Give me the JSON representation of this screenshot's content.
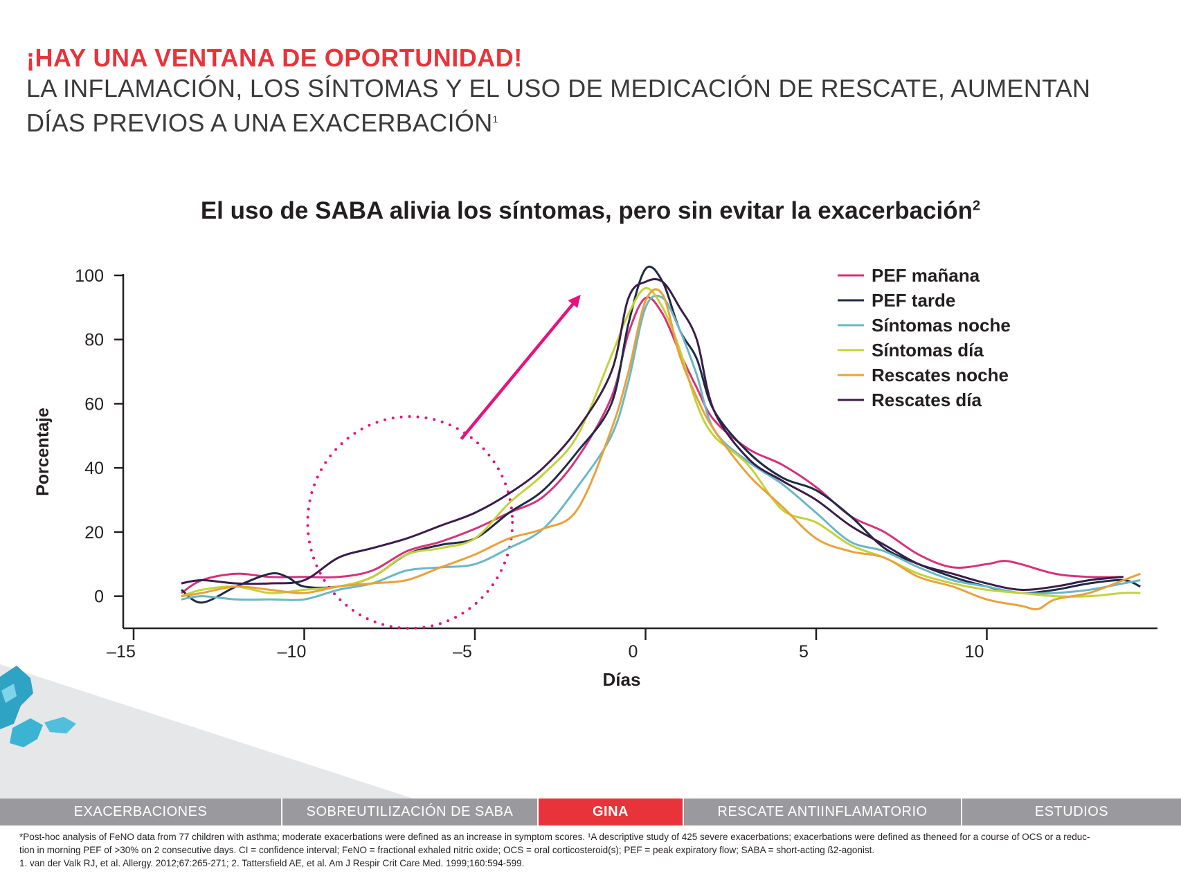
{
  "header": {
    "headline": "¡HAY UNA VENTANA DE OPORTUNIDAD!",
    "subline1": "LA INFLAMACIÓN, LOS SÍNTOMAS Y EL USO DE MEDICACIÓN DE RESCATE, AUMENTAN",
    "subline2": "DÍAS PREVIOS A UNA EXACERBACIÓN",
    "subline2_ref": "1"
  },
  "chart_title": "El uso de SABA alivia los síntomas, pero sin evitar la exacerbación",
  "chart_title_ref": "2",
  "chart_data": {
    "type": "line",
    "title": "El uso de SABA alivia los síntomas, pero sin evitar la exacerbación",
    "xlabel": "Días",
    "ylabel": "Porcentaje",
    "xlim": [
      -15,
      15
    ],
    "ylim": [
      -10,
      100
    ],
    "xticks": [
      -15,
      -10,
      -5,
      0,
      5,
      10
    ],
    "yticks": [
      0,
      20,
      40,
      60,
      80,
      100
    ],
    "grid": false,
    "legend_position": "top-right",
    "annotations": [
      {
        "type": "dotted-circle",
        "center": [
          -6.9,
          23
        ],
        "radius_x": 3,
        "radius_y": 33,
        "color": "#e6127e"
      },
      {
        "type": "arrow",
        "from": [
          -5.4,
          49
        ],
        "to": [
          -1.9,
          94
        ],
        "color": "#e6127e"
      }
    ],
    "series": [
      {
        "name": "PEF mañana",
        "color": "#d6317a",
        "points": [
          [
            -13.6,
            1
          ],
          [
            -13,
            5
          ],
          [
            -12,
            7
          ],
          [
            -11,
            6
          ],
          [
            -10,
            6
          ],
          [
            -9,
            6
          ],
          [
            -8,
            8
          ],
          [
            -7,
            14
          ],
          [
            -6,
            17
          ],
          [
            -5,
            21
          ],
          [
            -4,
            26
          ],
          [
            -3,
            31
          ],
          [
            -2,
            43
          ],
          [
            -1,
            62
          ],
          [
            -0.5,
            82
          ],
          [
            0,
            93
          ],
          [
            0.5,
            88
          ],
          [
            1,
            76
          ],
          [
            1.5,
            65
          ],
          [
            2,
            55
          ],
          [
            3,
            46
          ],
          [
            4,
            41
          ],
          [
            5,
            34
          ],
          [
            6,
            25
          ],
          [
            7,
            20
          ],
          [
            8,
            13
          ],
          [
            9,
            9
          ],
          [
            10,
            10
          ],
          [
            10.5,
            11
          ],
          [
            11,
            10
          ],
          [
            12,
            7
          ],
          [
            13,
            6
          ],
          [
            14,
            6
          ]
        ]
      },
      {
        "name": "PEF tarde",
        "color": "#1e2b45",
        "points": [
          [
            -13.6,
            2
          ],
          [
            -13,
            -2
          ],
          [
            -12,
            3
          ],
          [
            -11,
            7
          ],
          [
            -10.5,
            6
          ],
          [
            -10,
            3
          ],
          [
            -9,
            3
          ],
          [
            -8,
            6
          ],
          [
            -7,
            13
          ],
          [
            -6,
            16
          ],
          [
            -5,
            18
          ],
          [
            -4,
            26
          ],
          [
            -3,
            33
          ],
          [
            -2,
            45
          ],
          [
            -1,
            60
          ],
          [
            -0.5,
            85
          ],
          [
            0,
            102
          ],
          [
            0.5,
            98
          ],
          [
            1,
            83
          ],
          [
            1.5,
            74
          ],
          [
            2,
            58
          ],
          [
            3,
            45
          ],
          [
            4,
            37
          ],
          [
            5,
            33
          ],
          [
            6,
            25
          ],
          [
            7,
            15
          ],
          [
            8,
            10
          ],
          [
            9,
            6
          ],
          [
            10,
            3
          ],
          [
            11,
            1
          ],
          [
            12,
            2
          ],
          [
            13,
            4
          ],
          [
            14,
            5
          ],
          [
            14.5,
            3
          ]
        ]
      },
      {
        "name": "Síntomas noche",
        "color": "#6ab7c7",
        "points": [
          [
            -13.6,
            -1
          ],
          [
            -13,
            0
          ],
          [
            -12,
            -1
          ],
          [
            -11,
            -1
          ],
          [
            -10,
            -1
          ],
          [
            -9,
            2
          ],
          [
            -8,
            4
          ],
          [
            -7,
            8
          ],
          [
            -6,
            9
          ],
          [
            -5,
            10
          ],
          [
            -4,
            15
          ],
          [
            -3,
            21
          ],
          [
            -2,
            34
          ],
          [
            -1,
            50
          ],
          [
            -0.5,
            67
          ],
          [
            0,
            90
          ],
          [
            0.5,
            93
          ],
          [
            1,
            83
          ],
          [
            1.5,
            69
          ],
          [
            2,
            52
          ],
          [
            3,
            42
          ],
          [
            4,
            35
          ],
          [
            5,
            26
          ],
          [
            6,
            17
          ],
          [
            7,
            14
          ],
          [
            8,
            9
          ],
          [
            9,
            5
          ],
          [
            10,
            3
          ],
          [
            11,
            1
          ],
          [
            12,
            1
          ],
          [
            13,
            2
          ],
          [
            14,
            4
          ],
          [
            14.5,
            5
          ]
        ]
      },
      {
        "name": "Síntomas día",
        "color": "#c3d23a",
        "points": [
          [
            -13.6,
            0
          ],
          [
            -13,
            2
          ],
          [
            -12,
            3
          ],
          [
            -11,
            1
          ],
          [
            -10,
            2
          ],
          [
            -9,
            3
          ],
          [
            -8,
            6
          ],
          [
            -7,
            13
          ],
          [
            -6,
            15
          ],
          [
            -5,
            18
          ],
          [
            -4,
            29
          ],
          [
            -3,
            38
          ],
          [
            -2,
            50
          ],
          [
            -1,
            75
          ],
          [
            -0.5,
            88
          ],
          [
            0,
            96
          ],
          [
            0.5,
            90
          ],
          [
            1,
            77
          ],
          [
            1.5,
            60
          ],
          [
            2,
            50
          ],
          [
            3,
            41
          ],
          [
            4,
            27
          ],
          [
            5,
            23
          ],
          [
            6,
            16
          ],
          [
            7,
            12
          ],
          [
            8,
            7
          ],
          [
            9,
            4
          ],
          [
            10,
            2
          ],
          [
            11,
            1
          ],
          [
            12,
            0
          ],
          [
            13,
            0
          ],
          [
            14,
            1
          ],
          [
            14.5,
            1
          ]
        ]
      },
      {
        "name": "Rescates noche",
        "color": "#e8a23b",
        "points": [
          [
            -13.6,
            0
          ],
          [
            -13,
            1
          ],
          [
            -12,
            3
          ],
          [
            -11,
            2
          ],
          [
            -10,
            1
          ],
          [
            -9,
            3
          ],
          [
            -8,
            4
          ],
          [
            -7,
            5
          ],
          [
            -6,
            9
          ],
          [
            -5,
            13
          ],
          [
            -4,
            18
          ],
          [
            -3,
            21
          ],
          [
            -2,
            27
          ],
          [
            -1,
            52
          ],
          [
            -0.5,
            70
          ],
          [
            0,
            92
          ],
          [
            0.5,
            94
          ],
          [
            1,
            75
          ],
          [
            1.5,
            62
          ],
          [
            2,
            52
          ],
          [
            3,
            38
          ],
          [
            4,
            28
          ],
          [
            5,
            18
          ],
          [
            6,
            14
          ],
          [
            7,
            12
          ],
          [
            8,
            6
          ],
          [
            9,
            3
          ],
          [
            10,
            -1
          ],
          [
            11,
            -3
          ],
          [
            11.5,
            -4
          ],
          [
            12,
            -1
          ],
          [
            13,
            1
          ],
          [
            14,
            5
          ],
          [
            14.5,
            7
          ]
        ]
      },
      {
        "name": "Rescates día",
        "color": "#3a1c4b",
        "points": [
          [
            -13.6,
            4
          ],
          [
            -13,
            5
          ],
          [
            -12,
            4
          ],
          [
            -11,
            4
          ],
          [
            -10,
            5
          ],
          [
            -9,
            12
          ],
          [
            -8,
            15
          ],
          [
            -7,
            18
          ],
          [
            -6,
            22
          ],
          [
            -5,
            26
          ],
          [
            -4,
            32
          ],
          [
            -3,
            40
          ],
          [
            -2,
            52
          ],
          [
            -1,
            70
          ],
          [
            -0.5,
            93
          ],
          [
            0,
            98
          ],
          [
            0.5,
            98
          ],
          [
            1,
            90
          ],
          [
            1.5,
            80
          ],
          [
            2,
            58
          ],
          [
            3,
            43
          ],
          [
            4,
            36
          ],
          [
            5,
            30
          ],
          [
            6,
            22
          ],
          [
            7,
            16
          ],
          [
            8,
            10
          ],
          [
            9,
            7
          ],
          [
            10,
            4
          ],
          [
            11,
            2
          ],
          [
            12,
            3
          ],
          [
            13,
            5
          ],
          [
            14,
            6
          ]
        ]
      }
    ]
  },
  "nav": {
    "tabs": [
      {
        "label": "EXACERBACIONES",
        "active": false
      },
      {
        "label": "SOBREUTILIZACIÓN DE SABA",
        "active": false
      },
      {
        "label": "GINA",
        "active": true
      },
      {
        "label": "RESCATE ANTIINFLAMATORIO",
        "active": false
      },
      {
        "label": "ESTUDIOS",
        "active": false
      }
    ]
  },
  "footnotes": {
    "line1": "*Post-hoc analysis of FeNO data from 77 children with asthma; moderate exacerbations were defined as an increase in symptom scores. ¹A descriptive study of 425 severe exacerbations; exacerbations were defined as theneed for a course of OCS or a reduc-",
    "line2": "tion in morning PEF of >30% on 2 consecutive days. CI = confidence interval; FeNO = fractional exhaled nitric oxide; OCS = oral corticosteroid(s); PEF = peak expiratory flow; SABA = short-acting ß2-agonist.",
    "line3": "1. van der Valk RJ, et al. Allergy. 2012;67:265-271; 2. Tattersfield AE, et al. Am J Respir Crit Care Med. 1999;160:594-599."
  },
  "colors": {
    "accent_red": "#e8333a",
    "nav_gray": "#9a9a9e",
    "annotation_pink": "#e6127e"
  }
}
